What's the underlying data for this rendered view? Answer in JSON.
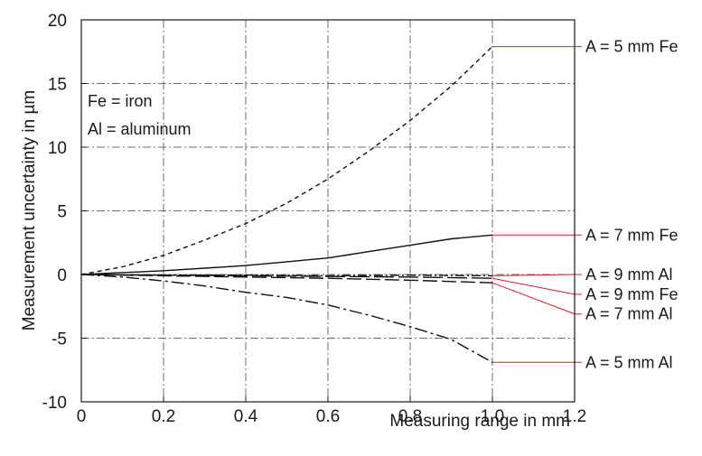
{
  "chart_data": {
    "type": "line",
    "xlabel": "Measuring range in mm",
    "ylabel": "Measurement uncertainty in µm",
    "xlim": [
      0,
      1.2
    ],
    "ylim": [
      -10,
      20
    ],
    "x_ticks": [
      0,
      0.2,
      0.4,
      0.6,
      0.8,
      1.0,
      1.2
    ],
    "x_tick_labels": [
      "0",
      "0.2",
      "0.4",
      "0.6",
      "0.8",
      "1.0",
      "1.2"
    ],
    "y_ticks": [
      -10,
      -5,
      0,
      5,
      10,
      15,
      20
    ],
    "y_tick_labels": [
      "-10",
      "-5",
      "0",
      "5",
      "10",
      "15",
      "20"
    ],
    "grid": true,
    "notes": [
      "Fe =  iron",
      "Al = aluminum"
    ],
    "callout_color": "#d62027",
    "series": [
      {
        "name": "A =  5 mm Fe",
        "style": "dashed",
        "x": [
          0,
          0.1,
          0.2,
          0.3,
          0.4,
          0.5,
          0.6,
          0.7,
          0.8,
          0.9,
          1.0
        ],
        "y": [
          0,
          0.6,
          1.5,
          2.7,
          4.0,
          5.6,
          7.5,
          9.7,
          12.1,
          14.8,
          17.9
        ]
      },
      {
        "name": "A = 7 mm Fe",
        "style": "solid",
        "x": [
          0,
          0.1,
          0.2,
          0.3,
          0.4,
          0.5,
          0.6,
          0.7,
          0.8,
          0.9,
          1.0
        ],
        "y": [
          0,
          0.15,
          0.3,
          0.5,
          0.7,
          1.0,
          1.3,
          1.8,
          2.3,
          2.8,
          3.1
        ]
      },
      {
        "name": "A = 9 mm Al",
        "style": "dashdot-fine",
        "x": [
          0,
          0.2,
          0.4,
          0.6,
          0.8,
          1.0
        ],
        "y": [
          0,
          -0.05,
          -0.05,
          -0.1,
          -0.05,
          -0.1
        ]
      },
      {
        "name": "A = 9 mm Fe",
        "style": "longdash",
        "x": [
          0,
          0.2,
          0.4,
          0.6,
          0.8,
          1.0
        ],
        "y": [
          0,
          -0.05,
          -0.1,
          -0.15,
          -0.2,
          -0.3
        ]
      },
      {
        "name": "A = 7 mm Al",
        "style": "longdash2",
        "x": [
          0,
          0.2,
          0.4,
          0.6,
          0.8,
          1.0
        ],
        "y": [
          0,
          -0.1,
          -0.2,
          -0.3,
          -0.45,
          -0.65
        ]
      },
      {
        "name": "A = 5 mm Al",
        "style": "dashdot",
        "x": [
          0,
          0.1,
          0.2,
          0.3,
          0.4,
          0.5,
          0.6,
          0.7,
          0.8,
          0.9,
          1.0
        ],
        "y": [
          0,
          -0.2,
          -0.5,
          -0.9,
          -1.4,
          -1.8,
          -2.4,
          -3.2,
          -4.1,
          -5.1,
          -6.9
        ]
      }
    ],
    "callouts": [
      {
        "series": "A =  5 mm Fe",
        "label": "A =  5 mm Fe",
        "label_y": 17.9
      },
      {
        "series": "A = 7 mm Fe",
        "label": "A = 7 mm Fe",
        "label_y": 3.1
      },
      {
        "series": "A = 9 mm Al",
        "label": "A = 9 mm Al",
        "label_y": 0
      },
      {
        "series": "A = 9 mm Fe",
        "label": "A = 9 mm Fe",
        "label_y": -1.55
      },
      {
        "series": "A = 7 mm Al",
        "label": "A = 7 mm Al",
        "label_y": -3.1
      },
      {
        "series": "A = 5 mm Al",
        "label": "A = 5 mm Al",
        "label_y": -6.9
      }
    ]
  }
}
